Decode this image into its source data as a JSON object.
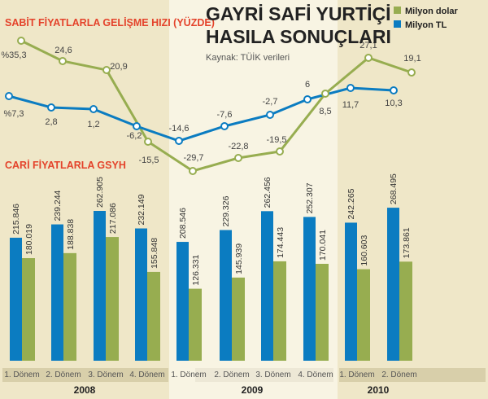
{
  "title_line1": "GAYRİ SAFİ YURTİÇİ",
  "title_line2": "HASILA SONUÇLARI",
  "source": "Kaynak: TÜİK verileri",
  "colors": {
    "tl": "#0b7cc1",
    "dollar": "#97ad50",
    "red_heading": "#e4432b"
  },
  "chart_data": [
    {
      "type": "line",
      "title": "SABİT FİYATLARLA GELİŞME HIZI (YÜZDE)",
      "categories": [
        "2008 1. Dönem",
        "2008 2. Dönem",
        "2008 3. Dönem",
        "2008 4. Dönem",
        "2009 1. Dönem",
        "2009 2. Dönem",
        "2009 3. Dönem",
        "2009 4. Dönem",
        "2010 1. Dönem",
        "2010 2. Dönem"
      ],
      "series": [
        {
          "name": "Milyon dolar",
          "values": [
            35.3,
            24.6,
            20.9,
            -15.5,
            -29.7,
            -22.8,
            -19.5,
            8.5,
            27.1,
            19.1
          ],
          "labels": [
            "%35,3",
            "24,6",
            "20,9",
            "-15,5",
            "-29,7",
            "-22,8",
            "-19,5",
            "8,5",
            "27,1",
            "19,1"
          ]
        },
        {
          "name": "Milyon TL",
          "values": [
            7.3,
            2.8,
            1.2,
            -6.2,
            -14.6,
            -7.6,
            -2.7,
            6,
            11.7,
            10.3
          ],
          "labels": [
            "%7,3",
            "2,8",
            "1,2",
            "-6,2",
            "-14,6",
            "-7,6",
            "-2,7",
            "6",
            "11,7",
            "10,3"
          ]
        }
      ]
    },
    {
      "type": "bar",
      "title": "CARİ FİYATLARLA GSYH",
      "categories": [
        "1. Dönem",
        "2. Dönem",
        "3. Dönem",
        "4. Dönem",
        "1. Dönem",
        "2. Dönem",
        "3. Dönem",
        "4. Dönem",
        "1. Dönem",
        "2. Dönem"
      ],
      "groups": [
        {
          "label": "2008",
          "count": 4
        },
        {
          "label": "2009",
          "count": 4
        },
        {
          "label": "2010",
          "count": 2
        }
      ],
      "series": [
        {
          "name": "Milyon TL",
          "values": [
            215846,
            239244,
            262905,
            232149,
            208546,
            229326,
            262456,
            252307,
            242265,
            268495
          ],
          "labels": [
            "215.846",
            "239.244",
            "262.905",
            "232.149",
            "208.546",
            "229.326",
            "262.456",
            "252.307",
            "242.265",
            "268.495"
          ]
        },
        {
          "name": "Milyon dolar",
          "values": [
            180019,
            188838,
            217086,
            155848,
            126331,
            145939,
            174443,
            170041,
            160603,
            173861
          ],
          "labels": [
            "180.019",
            "188.838",
            "217.086",
            "155.848",
            "126.331",
            "145.939",
            "174.443",
            "170.041",
            "160.603",
            "173.861"
          ]
        }
      ],
      "ylim": [
        0,
        280000
      ]
    }
  ],
  "legend": [
    {
      "label": "Milyon dolar"
    },
    {
      "label": "Milyon TL"
    }
  ]
}
